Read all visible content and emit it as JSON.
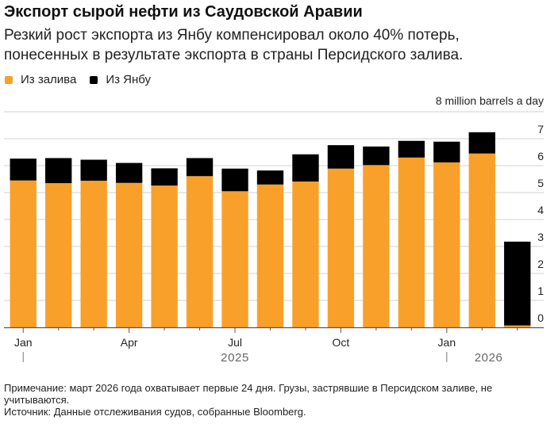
{
  "chart_data": {
    "type": "bar",
    "stacked": true,
    "title": "Экспорт сырой нефти из Саудовской Аравии",
    "subtitle": "Резкий рост экспорта из Янбу компенсировал около 40% потерь, понесенных в результате экспорта в страны Персидского залива.",
    "xlabel": "",
    "ylabel": "",
    "y_unit_label": "8 million barrels a day",
    "ylim": [
      0,
      8
    ],
    "yticks": [
      0,
      1,
      2,
      3,
      4,
      5,
      6,
      7,
      8
    ],
    "ytick_labels": [
      "0",
      "1",
      "2",
      "3",
      "4",
      "5",
      "6",
      "7",
      "8 million barrels a day"
    ],
    "grid": true,
    "legend_position": "top-left",
    "categories": [
      "Jan 2025",
      "Feb 2025",
      "Mar 2025",
      "Apr 2025",
      "May 2025",
      "Jun 2025",
      "Jul 2025",
      "Aug 2025",
      "Sep 2025",
      "Oct 2025",
      "Nov 2025",
      "Dec 2025",
      "Jan 2026",
      "Feb 2026",
      "Mar 2026"
    ],
    "xtick_labels": [
      {
        "index": 0,
        "label": "Jan"
      },
      {
        "index": 3,
        "label": "Apr"
      },
      {
        "index": 6,
        "label": "Jul"
      },
      {
        "index": 9,
        "label": "Oct"
      },
      {
        "index": 12,
        "label": "Jan"
      }
    ],
    "year_labels": [
      {
        "label": "2025",
        "start_index": 0
      },
      {
        "label": "2026",
        "start_index": 12
      }
    ],
    "series": [
      {
        "name": "Из залива",
        "color": "#f9a02a",
        "values": [
          5.45,
          5.35,
          5.44,
          5.36,
          5.26,
          5.61,
          5.05,
          5.3,
          5.41,
          5.89,
          6.02,
          6.3,
          6.12,
          6.45,
          0.07
        ]
      },
      {
        "name": "Из Янбу",
        "color": "#000000",
        "values": [
          0.81,
          0.93,
          0.78,
          0.74,
          0.64,
          0.67,
          0.84,
          0.52,
          1.01,
          0.87,
          0.69,
          0.62,
          0.77,
          0.79,
          3.11
        ]
      }
    ],
    "note": "Примечание: март 2026 года охватывает первые 24 дня. Грузы, застрявшие в Персидском заливе, не учитываются.",
    "source": "Источник: Данные отслеживания судов, собранные Bloomberg."
  }
}
